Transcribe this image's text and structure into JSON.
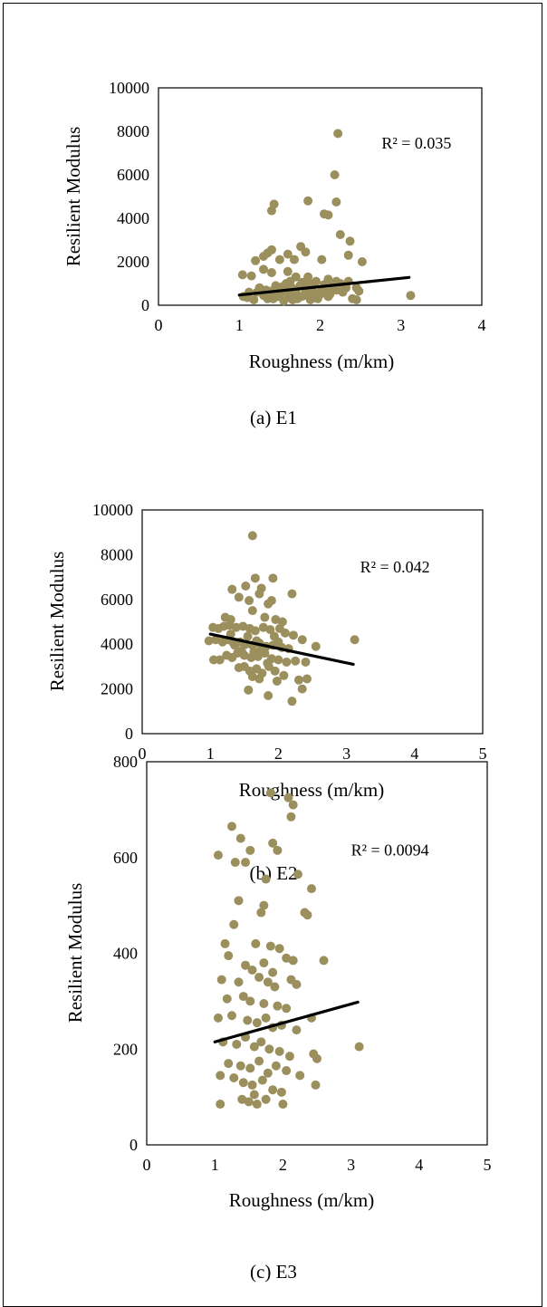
{
  "colors": {
    "point": "#9b8f5d",
    "trendline": "#000000",
    "axis": "#000000"
  },
  "chart_data": [
    {
      "type": "scatter",
      "caption": "(a) E1",
      "xlabel": "Roughness (m/km)",
      "ylabel": "Resilient Modulus",
      "xlim": [
        0,
        4
      ],
      "ylim": [
        0,
        10000
      ],
      "x_ticks": [
        0,
        1,
        2,
        3,
        4
      ],
      "y_ticks": [
        0,
        2000,
        4000,
        6000,
        8000,
        10000
      ],
      "annotation": "R² = 0.035",
      "trendline": {
        "x": [
          1.0,
          3.1
        ],
        "y": [
          470,
          1280
        ]
      },
      "points": [
        [
          2.22,
          7900
        ],
        [
          1.85,
          4800
        ],
        [
          2.18,
          6000
        ],
        [
          2.2,
          4750
        ],
        [
          1.43,
          4650
        ],
        [
          1.4,
          4350
        ],
        [
          2.05,
          4200
        ],
        [
          2.1,
          4150
        ],
        [
          2.25,
          3250
        ],
        [
          2.37,
          2950
        ],
        [
          1.76,
          2700
        ],
        [
          1.82,
          2450
        ],
        [
          1.35,
          2400
        ],
        [
          1.4,
          2550
        ],
        [
          1.2,
          2050
        ],
        [
          1.5,
          2100
        ],
        [
          1.6,
          2350
        ],
        [
          1.68,
          2100
        ],
        [
          1.3,
          2250
        ],
        [
          2.02,
          2100
        ],
        [
          2.35,
          2300
        ],
        [
          2.52,
          2000
        ],
        [
          1.04,
          1400
        ],
        [
          1.3,
          1650
        ],
        [
          1.15,
          1350
        ],
        [
          1.4,
          1500
        ],
        [
          1.6,
          1550
        ],
        [
          1.7,
          1300
        ],
        [
          1.85,
          1300
        ],
        [
          1.95,
          1100
        ],
        [
          2.1,
          1200
        ],
        [
          2.2,
          1100
        ],
        [
          2.35,
          1100
        ],
        [
          2.45,
          800
        ],
        [
          1.05,
          400
        ],
        [
          1.1,
          350
        ],
        [
          1.18,
          250
        ],
        [
          1.22,
          600
        ],
        [
          1.25,
          800
        ],
        [
          1.3,
          450
        ],
        [
          1.35,
          300
        ],
        [
          1.4,
          650
        ],
        [
          1.42,
          300
        ],
        [
          1.45,
          900
        ],
        [
          1.5,
          500
        ],
        [
          1.52,
          750
        ],
        [
          1.55,
          200
        ],
        [
          1.58,
          1000
        ],
        [
          1.6,
          550
        ],
        [
          1.62,
          350
        ],
        [
          1.65,
          800
        ],
        [
          1.68,
          500
        ],
        [
          1.7,
          650
        ],
        [
          1.72,
          300
        ],
        [
          1.75,
          900
        ],
        [
          1.78,
          1050
        ],
        [
          1.8,
          450
        ],
        [
          1.82,
          700
        ],
        [
          1.85,
          550
        ],
        [
          1.88,
          250
        ],
        [
          1.9,
          850
        ],
        [
          1.92,
          600
        ],
        [
          1.95,
          400
        ],
        [
          2.0,
          500
        ],
        [
          2.02,
          700
        ],
        [
          2.05,
          950
        ],
        [
          2.1,
          400
        ],
        [
          2.15,
          850
        ],
        [
          2.2,
          700
        ],
        [
          2.28,
          600
        ],
        [
          2.32,
          800
        ],
        [
          2.4,
          300
        ],
        [
          2.45,
          250
        ],
        [
          2.48,
          650
        ],
        [
          3.12,
          450
        ],
        [
          1.12,
          600
        ],
        [
          1.48,
          400
        ],
        [
          1.57,
          650
        ],
        [
          1.66,
          250
        ],
        [
          1.77,
          400
        ],
        [
          1.87,
          1000
        ],
        [
          1.97,
          300
        ],
        [
          2.07,
          600
        ],
        [
          2.12,
          500
        ],
        [
          2.25,
          1000
        ],
        [
          1.63,
          1100
        ],
        [
          1.53,
          850
        ],
        [
          1.33,
          700
        ]
      ]
    },
    {
      "type": "scatter",
      "caption": "(b) E2",
      "xlabel": "Roughness (m/km)",
      "ylabel": "Resilient Modulus",
      "xlim": [
        0,
        5
      ],
      "ylim": [
        0,
        10000
      ],
      "x_ticks": [
        0,
        1,
        2,
        3,
        4,
        5
      ],
      "y_ticks": [
        0,
        2000,
        4000,
        6000,
        8000,
        10000
      ],
      "annotation": "R² = 0.042",
      "trendline": {
        "x": [
          1.0,
          3.1
        ],
        "y": [
          4450,
          3100
        ]
      },
      "points": [
        [
          1.62,
          8850
        ],
        [
          1.66,
          6950
        ],
        [
          1.92,
          6950
        ],
        [
          1.52,
          6600
        ],
        [
          1.75,
          6500
        ],
        [
          1.32,
          6450
        ],
        [
          1.72,
          6250
        ],
        [
          2.2,
          6250
        ],
        [
          1.42,
          6100
        ],
        [
          1.57,
          5950
        ],
        [
          1.9,
          5950
        ],
        [
          1.85,
          5800
        ],
        [
          1.62,
          5500
        ],
        [
          1.22,
          5200
        ],
        [
          1.3,
          5100
        ],
        [
          1.8,
          5200
        ],
        [
          1.96,
          5100
        ],
        [
          2.06,
          5000
        ],
        [
          1.04,
          4750
        ],
        [
          1.12,
          4700
        ],
        [
          1.2,
          4800
        ],
        [
          1.28,
          4850
        ],
        [
          1.38,
          4750
        ],
        [
          1.48,
          4800
        ],
        [
          1.58,
          4700
        ],
        [
          1.66,
          4600
        ],
        [
          1.78,
          4750
        ],
        [
          1.88,
          4650
        ],
        [
          2.02,
          4700
        ],
        [
          2.1,
          4500
        ],
        [
          2.22,
          4400
        ],
        [
          2.35,
          4200
        ],
        [
          0.98,
          4150
        ],
        [
          1.08,
          4200
        ],
        [
          1.18,
          4100
        ],
        [
          1.26,
          4200
        ],
        [
          1.34,
          4050
        ],
        [
          1.44,
          4100
        ],
        [
          1.52,
          4000
        ],
        [
          1.62,
          3950
        ],
        [
          1.72,
          4050
        ],
        [
          1.82,
          3900
        ],
        [
          1.92,
          3950
        ],
        [
          2.05,
          3850
        ],
        [
          2.15,
          3800
        ],
        [
          2.55,
          3900
        ],
        [
          3.12,
          4200
        ],
        [
          1.05,
          3300
        ],
        [
          1.14,
          3300
        ],
        [
          1.24,
          3500
        ],
        [
          1.32,
          3400
        ],
        [
          1.4,
          3600
        ],
        [
          1.5,
          3500
        ],
        [
          1.6,
          3400
        ],
        [
          1.7,
          3450
        ],
        [
          1.8,
          3600
        ],
        [
          1.9,
          3350
        ],
        [
          2.0,
          3300
        ],
        [
          2.12,
          3200
        ],
        [
          2.25,
          3250
        ],
        [
          2.4,
          3200
        ],
        [
          1.42,
          2950
        ],
        [
          1.5,
          3000
        ],
        [
          1.58,
          2800
        ],
        [
          1.68,
          2900
        ],
        [
          1.76,
          2700
        ],
        [
          1.86,
          3000
        ],
        [
          1.95,
          2800
        ],
        [
          2.08,
          2600
        ],
        [
          2.3,
          2400
        ],
        [
          2.42,
          2450
        ],
        [
          1.62,
          2550
        ],
        [
          1.72,
          2450
        ],
        [
          1.98,
          2350
        ],
        [
          1.56,
          1950
        ],
        [
          2.35,
          2000
        ],
        [
          1.85,
          1700
        ],
        [
          2.2,
          1450
        ],
        [
          1.36,
          3950
        ],
        [
          1.46,
          3700
        ],
        [
          1.64,
          3650
        ],
        [
          1.74,
          3750
        ],
        [
          1.84,
          3150
        ],
        [
          1.94,
          4350
        ],
        [
          1.3,
          4450
        ],
        [
          1.55,
          4350
        ],
        [
          1.68,
          4150
        ],
        [
          2.0,
          4100
        ]
      ]
    },
    {
      "type": "scatter",
      "caption": "(c) E3",
      "xlabel": "Roughness (m/km)",
      "ylabel": "Resilient Modulus",
      "xlim": [
        0,
        5
      ],
      "ylim": [
        0,
        800
      ],
      "x_ticks": [
        0,
        1,
        2,
        3,
        4,
        5
      ],
      "y_ticks": [
        0,
        200,
        400,
        600,
        800
      ],
      "annotation": "R² = 0.0094",
      "trendline": {
        "x": [
          1.0,
          3.1
        ],
        "y": [
          215,
          298
        ]
      },
      "points": [
        [
          1.82,
          735
        ],
        [
          2.08,
          725
        ],
        [
          2.15,
          710
        ],
        [
          2.12,
          685
        ],
        [
          1.25,
          665
        ],
        [
          1.38,
          640
        ],
        [
          1.52,
          615
        ],
        [
          1.85,
          630
        ],
        [
          1.92,
          615
        ],
        [
          1.05,
          605
        ],
        [
          1.3,
          590
        ],
        [
          1.45,
          590
        ],
        [
          2.22,
          565
        ],
        [
          1.75,
          555
        ],
        [
          2.42,
          535
        ],
        [
          1.35,
          510
        ],
        [
          1.72,
          500
        ],
        [
          1.68,
          485
        ],
        [
          2.32,
          485
        ],
        [
          2.36,
          480
        ],
        [
          1.28,
          460
        ],
        [
          1.15,
          420
        ],
        [
          1.6,
          420
        ],
        [
          1.82,
          415
        ],
        [
          1.95,
          410
        ],
        [
          1.2,
          395
        ],
        [
          1.45,
          375
        ],
        [
          1.55,
          365
        ],
        [
          1.72,
          380
        ],
        [
          1.85,
          360
        ],
        [
          2.05,
          390
        ],
        [
          2.15,
          385
        ],
        [
          2.6,
          385
        ],
        [
          1.1,
          345
        ],
        [
          1.35,
          340
        ],
        [
          1.65,
          350
        ],
        [
          1.78,
          340
        ],
        [
          1.88,
          330
        ],
        [
          2.12,
          345
        ],
        [
          2.2,
          335
        ],
        [
          1.18,
          305
        ],
        [
          1.42,
          310
        ],
        [
          1.52,
          300
        ],
        [
          1.72,
          295
        ],
        [
          1.92,
          290
        ],
        [
          2.05,
          285
        ],
        [
          1.05,
          265
        ],
        [
          1.25,
          270
        ],
        [
          1.48,
          260
        ],
        [
          1.62,
          255
        ],
        [
          1.75,
          265
        ],
        [
          1.85,
          245
        ],
        [
          1.98,
          250
        ],
        [
          2.2,
          240
        ],
        [
          2.42,
          265
        ],
        [
          1.12,
          215
        ],
        [
          1.32,
          210
        ],
        [
          1.45,
          225
        ],
        [
          1.58,
          205
        ],
        [
          1.68,
          215
        ],
        [
          1.8,
          200
        ],
        [
          1.95,
          195
        ],
        [
          2.1,
          185
        ],
        [
          2.45,
          190
        ],
        [
          2.5,
          180
        ],
        [
          1.2,
          170
        ],
        [
          1.38,
          165
        ],
        [
          1.52,
          160
        ],
        [
          1.65,
          175
        ],
        [
          1.78,
          150
        ],
        [
          1.9,
          165
        ],
        [
          2.05,
          155
        ],
        [
          2.25,
          145
        ],
        [
          1.08,
          145
        ],
        [
          1.28,
          140
        ],
        [
          1.42,
          130
        ],
        [
          1.55,
          125
        ],
        [
          1.7,
          135
        ],
        [
          1.85,
          115
        ],
        [
          1.98,
          110
        ],
        [
          2.48,
          125
        ],
        [
          3.12,
          205
        ],
        [
          1.4,
          95
        ],
        [
          1.5,
          90
        ],
        [
          1.62,
          85
        ],
        [
          1.75,
          95
        ],
        [
          1.08,
          85
        ],
        [
          2.0,
          85
        ],
        [
          1.58,
          105
        ]
      ]
    }
  ]
}
